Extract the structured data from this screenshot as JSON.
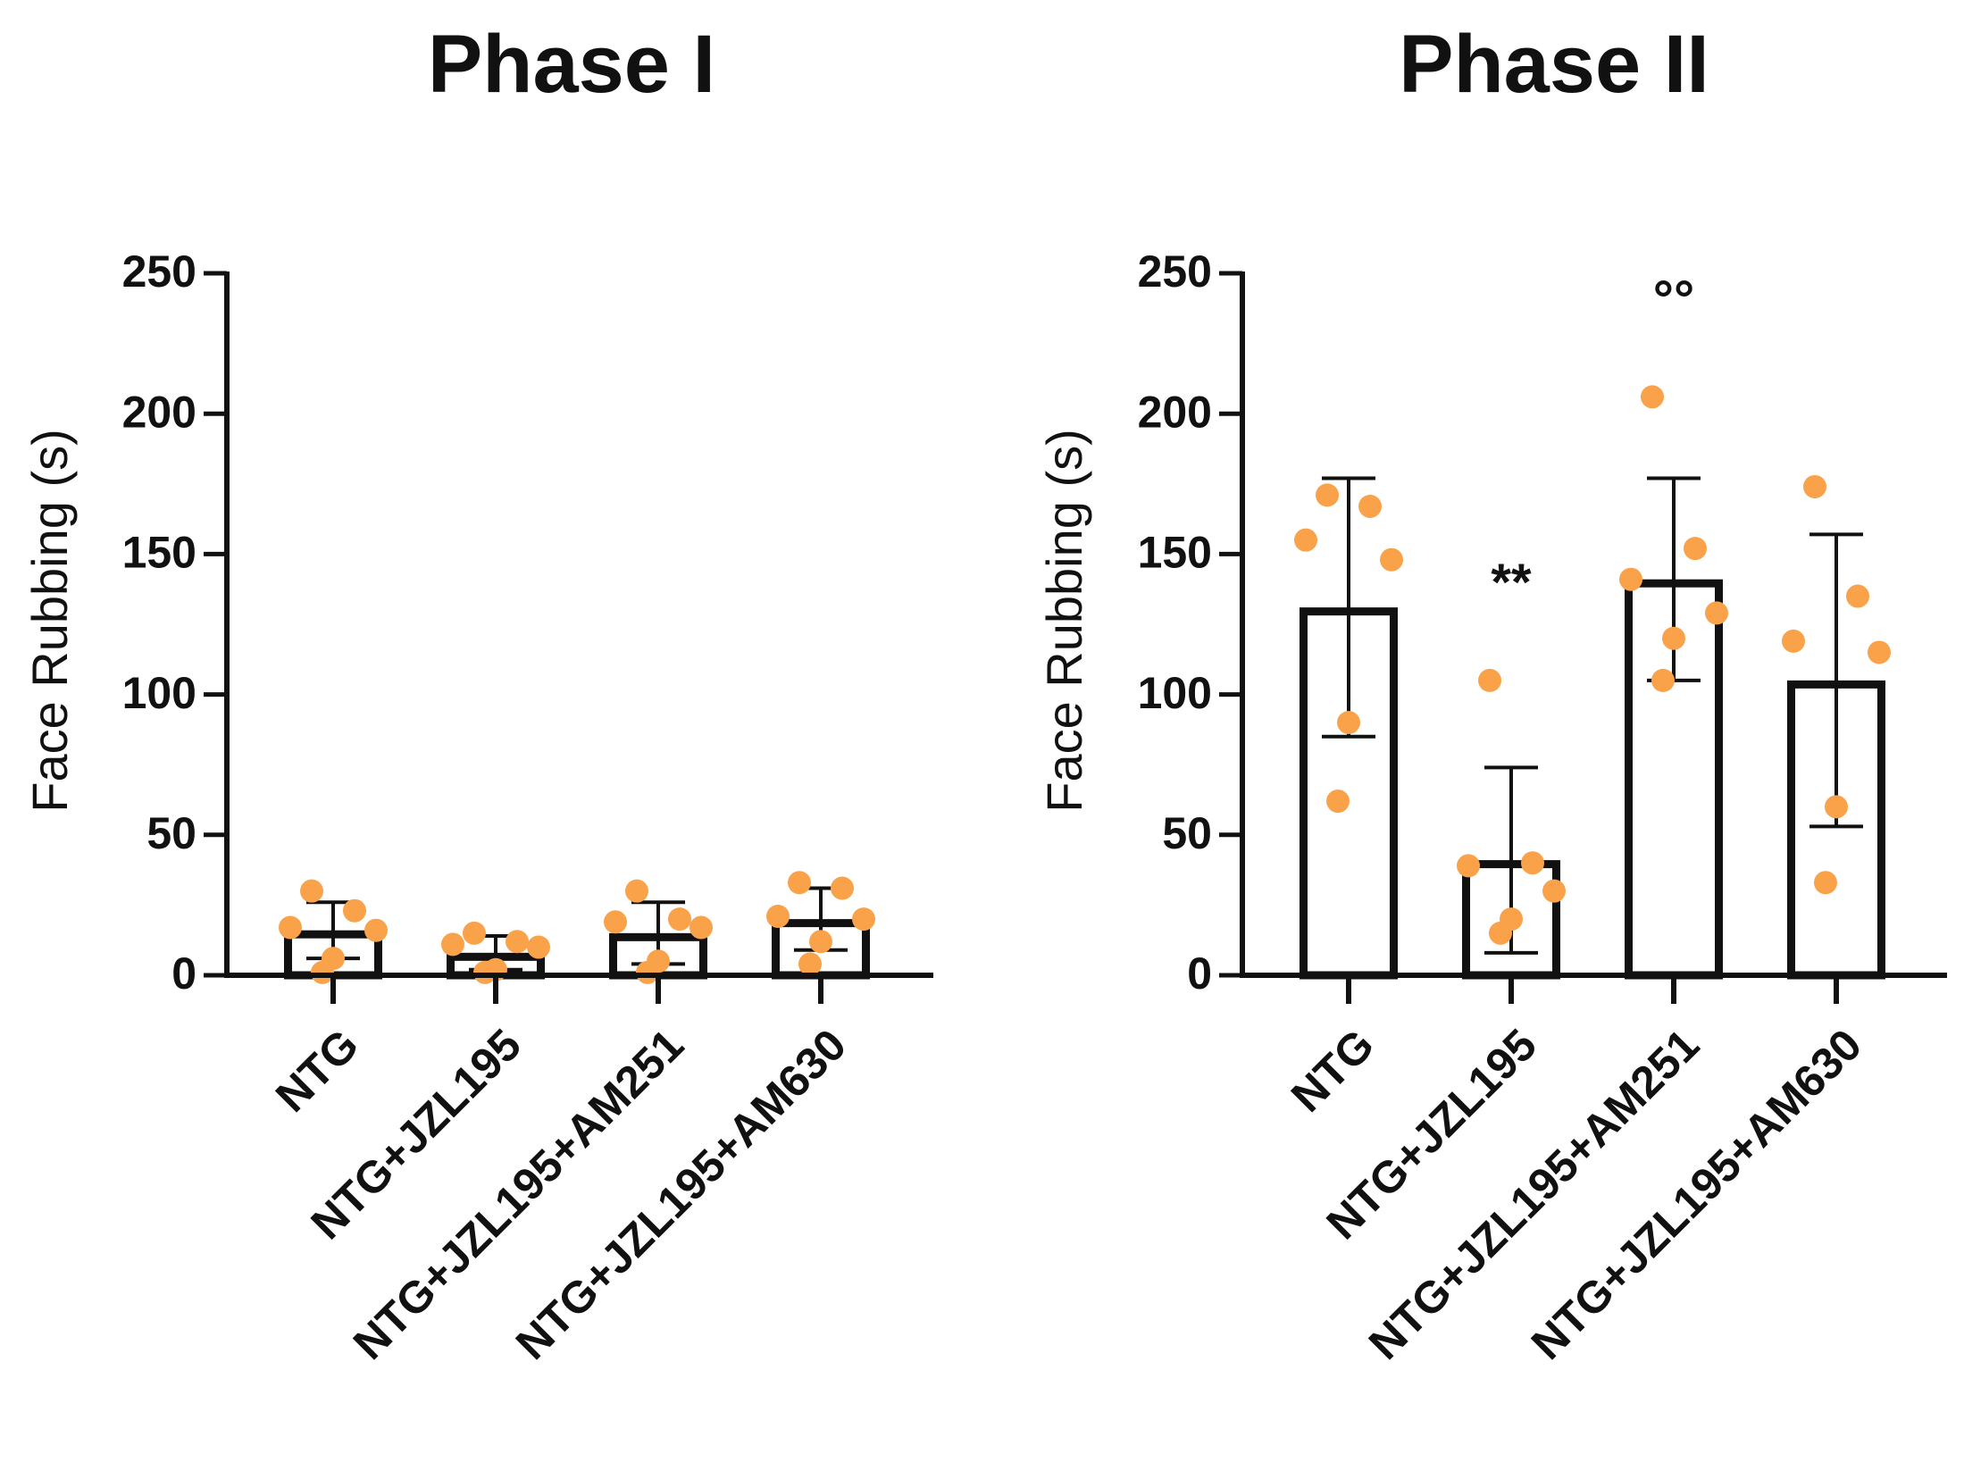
{
  "chart_data": [
    {
      "type": "bar",
      "title": "Phase I",
      "xlabel": "",
      "ylabel": "Face Rubbing (s)",
      "ylim": [
        0,
        250
      ],
      "yticks": [
        0,
        50,
        100,
        150,
        200,
        250
      ],
      "categories": [
        "NTG",
        "NTG+JZL195",
        "NTG+JZL195+AM251",
        "NTG+JZL195+AM630"
      ],
      "values": [
        16,
        8,
        15,
        20
      ],
      "error": [
        10,
        6,
        11,
        11
      ],
      "points": [
        [
          30,
          23,
          17,
          16,
          6,
          1
        ],
        [
          15,
          12,
          11,
          10,
          2,
          1
        ],
        [
          30,
          20,
          19,
          17,
          5,
          1
        ],
        [
          33,
          31,
          21,
          20,
          12,
          4
        ]
      ],
      "annotations": [
        "",
        "",
        "",
        ""
      ],
      "colors": {
        "points": "#F9A24A",
        "bars": "#111111"
      }
    },
    {
      "type": "bar",
      "title": "Phase II",
      "xlabel": "",
      "ylabel": "Face Rubbing (s)",
      "ylim": [
        0,
        250
      ],
      "yticks": [
        0,
        50,
        100,
        150,
        200,
        250
      ],
      "categories": [
        "NTG",
        "NTG+JZL195",
        "NTG+JZL195+AM251",
        "NTG+JZL195+AM630"
      ],
      "values": [
        131,
        41,
        141,
        105
      ],
      "error": [
        46,
        33,
        36,
        52
      ],
      "points": [
        [
          171,
          167,
          155,
          148,
          90,
          62
        ],
        [
          105,
          40,
          39,
          30,
          20,
          15
        ],
        [
          206,
          152,
          141,
          129,
          120,
          105
        ],
        [
          174,
          135,
          119,
          115,
          60,
          33
        ]
      ],
      "annotations": [
        "",
        "**",
        "°°",
        ""
      ],
      "colors": {
        "points": "#F9A24A",
        "bars": "#111111"
      }
    }
  ]
}
